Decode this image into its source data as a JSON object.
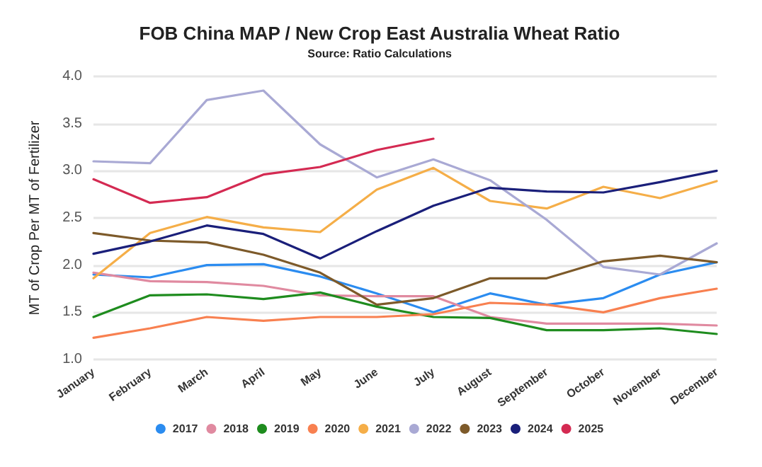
{
  "chart_data": {
    "type": "line",
    "title": "FOB China MAP / New Crop East Australia Wheat Ratio",
    "subtitle": "Source: Ratio Calculations",
    "ylabel": "MT of Crop Per MT of Fertilizer",
    "categories": [
      "January",
      "February",
      "March",
      "April",
      "May",
      "June",
      "July",
      "August",
      "September",
      "October",
      "November",
      "December"
    ],
    "ylim": [
      1.0,
      4.0
    ],
    "yticks": [
      {
        "value": 1,
        "label": "1.0"
      },
      {
        "value": 1.5,
        "label": "1.5"
      },
      {
        "value": 2,
        "label": "2.0"
      },
      {
        "value": 2.5,
        "label": "2.5"
      },
      {
        "value": 3,
        "label": "3.0"
      },
      {
        "value": 3.5,
        "label": "3.5"
      },
      {
        "value": 4,
        "label": "4.0"
      }
    ],
    "grid": "y",
    "legend": "bottom",
    "marker": "none",
    "line_style": "solid",
    "series": [
      {
        "name": "2017",
        "color": "#2b8cf0",
        "values": [
          1.9,
          1.87,
          2.0,
          2.01,
          1.88,
          1.7,
          1.5,
          1.7,
          1.58,
          1.65,
          1.9,
          2.03
        ]
      },
      {
        "name": "2018",
        "color": "#e08aa0",
        "values": [
          1.92,
          1.83,
          1.82,
          1.78,
          1.68,
          1.67,
          1.67,
          1.45,
          1.38,
          1.38,
          1.38,
          1.36
        ]
      },
      {
        "name": "2019",
        "color": "#1e8c1e",
        "values": [
          1.45,
          1.68,
          1.69,
          1.64,
          1.71,
          1.56,
          1.45,
          1.44,
          1.31,
          1.31,
          1.33,
          1.27
        ]
      },
      {
        "name": "2020",
        "color": "#f88050",
        "values": [
          1.23,
          1.33,
          1.45,
          1.41,
          1.45,
          1.45,
          1.48,
          1.6,
          1.58,
          1.5,
          1.65,
          1.75
        ]
      },
      {
        "name": "2021",
        "color": "#f5ae48",
        "values": [
          1.86,
          2.34,
          2.51,
          2.4,
          2.35,
          2.8,
          3.03,
          2.68,
          2.6,
          2.83,
          2.71,
          2.89
        ]
      },
      {
        "name": "2022",
        "color": "#a9a9d4",
        "values": [
          3.1,
          3.08,
          3.75,
          3.85,
          3.28,
          2.93,
          3.12,
          2.9,
          2.48,
          1.98,
          1.9,
          2.23
        ]
      },
      {
        "name": "2023",
        "color": "#7d5a2a",
        "values": [
          2.34,
          2.26,
          2.24,
          2.11,
          1.92,
          1.58,
          1.65,
          1.86,
          1.86,
          2.04,
          2.1,
          2.03
        ]
      },
      {
        "name": "2024",
        "color": "#1a1f7a",
        "values": [
          2.12,
          2.25,
          2.42,
          2.33,
          2.07,
          2.36,
          2.63,
          2.82,
          2.78,
          2.77,
          2.88,
          3.0
        ]
      },
      {
        "name": "2025",
        "color": "#d42a52",
        "values": [
          2.91,
          2.66,
          2.72,
          2.96,
          3.04,
          3.22,
          3.34,
          null,
          null,
          null,
          null,
          null
        ]
      }
    ]
  }
}
